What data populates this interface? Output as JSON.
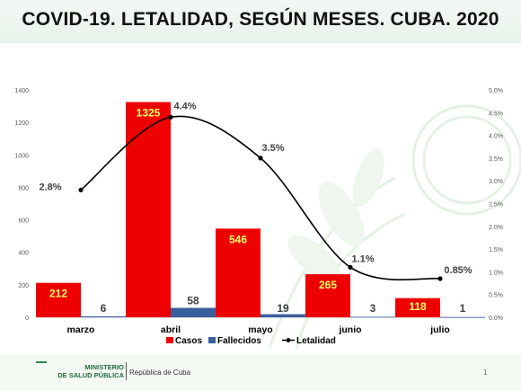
{
  "slide": {
    "title": "COVID-19. LETALIDAD, SEGÚN MESES. CUBA. 2020",
    "footer_org_line1": "MINISTERIO",
    "footer_org_line2": "DE SALUD PÚBLICA",
    "footer_republic": "República de Cuba",
    "page_number": "1"
  },
  "chart_data": {
    "type": "bar",
    "title": "COVID-19. LETALIDAD, SEGÚN MESES. CUBA. 2020",
    "categories": [
      "marzo",
      "abril",
      "mayo",
      "junio",
      "julio"
    ],
    "series": [
      {
        "name": "Casos",
        "type": "bar",
        "axis": "left",
        "color": "#ee0000",
        "values": [
          212,
          1325,
          546,
          265,
          118
        ],
        "labels": [
          "212",
          "1325",
          "546",
          "265",
          "118"
        ]
      },
      {
        "name": "Fallecidos",
        "type": "bar",
        "axis": "left",
        "color": "#3a5f9e",
        "values": [
          6,
          58,
          19,
          3,
          1
        ],
        "labels": [
          "6",
          "58",
          "19",
          "3",
          "1"
        ]
      },
      {
        "name": "Letalidad",
        "type": "line",
        "axis": "right",
        "color": "#000000",
        "values": [
          2.8,
          4.4,
          3.5,
          1.1,
          0.85
        ],
        "labels": [
          "2.8%",
          "4.4%",
          "3.5%",
          "1.1%",
          "0.85%"
        ]
      }
    ],
    "y_left": {
      "min": 0,
      "max": 1400,
      "ticks": [
        "0",
        "200",
        "400",
        "600",
        "800",
        "1000",
        "1200",
        "1400"
      ]
    },
    "y_right": {
      "min": 0,
      "max": 5,
      "ticks": [
        "0.0%",
        "0.5%",
        "1.0%",
        "1.5%",
        "2.0%",
        "2.5%",
        "3.0%",
        "3.5%",
        "4.0%",
        "4.5%",
        "5.0%"
      ]
    },
    "legend": {
      "position": "bottom"
    },
    "grid": false
  }
}
